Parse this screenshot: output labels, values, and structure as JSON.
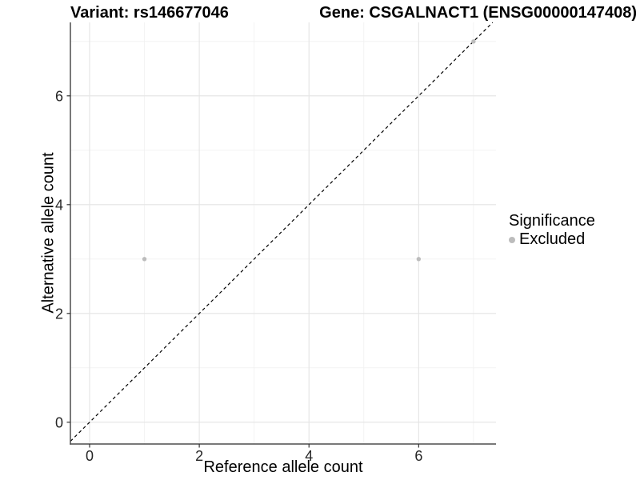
{
  "header": {
    "variant_title": "Variant: rs146677046",
    "gene_title": "Gene: CSGALNACT1 (ENSG00000147408)"
  },
  "chart_data": {
    "type": "scatter",
    "xlabel": "Reference allele count",
    "ylabel": "Alternative allele count",
    "xlim": [
      -0.35,
      7.41
    ],
    "ylim": [
      -0.4,
      7.35
    ],
    "x_ticks": [
      0,
      2,
      4,
      6
    ],
    "y_ticks": [
      0,
      2,
      4,
      6
    ],
    "x_minor_ticks": [
      1,
      3,
      5,
      7
    ],
    "y_minor_ticks": [
      1,
      3,
      5,
      7
    ],
    "grid": true,
    "series": [
      {
        "name": "Excluded",
        "color": "#bcbcbc",
        "points": [
          {
            "x": 1,
            "y": 3
          },
          {
            "x": 6,
            "y": 3
          },
          {
            "x": 7,
            "y": 7
          }
        ]
      }
    ],
    "reference_line": {
      "type": "identity",
      "slope": 1,
      "intercept": 0,
      "style": "dashed",
      "color": "#000000"
    },
    "legend": {
      "title": "Significance",
      "position": "right",
      "entries": [
        {
          "label": "Excluded",
          "color": "#bcbcbc"
        }
      ]
    }
  },
  "colors": {
    "background": "#ffffff",
    "grid_major": "#e4e4e4",
    "grid_minor": "#f1f1f1",
    "axis_line": "#4d4d4d",
    "tick_mark": "#333333",
    "tick_label": "#262626",
    "point": "#bcbcbc"
  }
}
